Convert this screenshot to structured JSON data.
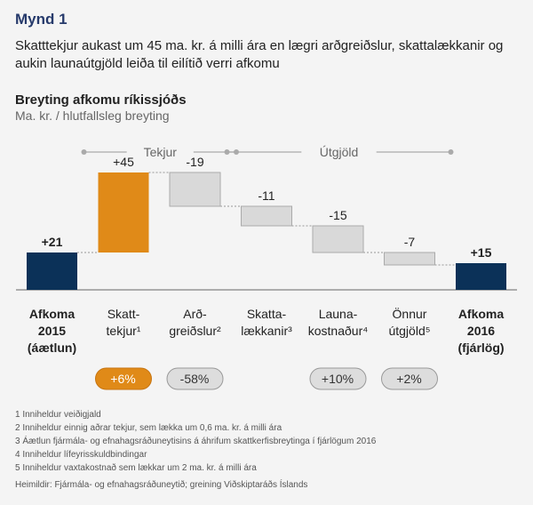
{
  "figure_label": "Mynd 1",
  "headline": "Skatttekjur aukast um 45 ma. kr. á milli ára en lægri arðgreiðslur, skattalækkanir og aukin launaútgjöld leiða til eilítið verri afkomu",
  "colors": {
    "total": "#0b3158",
    "increase": "#e08a18",
    "decrease": "#d9d9d9",
    "decrease_border": "#aaaaaa",
    "group_line": "#aaaaaa",
    "pill_increase": "#e08a18",
    "pill_neutral": "#dddddd"
  },
  "chart_data": {
    "type": "bar",
    "subtype": "waterfall",
    "title": "Breyting afkomu ríkissjóðs",
    "subtitle": "Ma. kr. / hlutfallsleg breyting",
    "groups": [
      {
        "label": "Tekjur",
        "from": 1,
        "to": 2
      },
      {
        "label": "Útgjöld",
        "from": 3,
        "to": 5
      }
    ],
    "bars": [
      {
        "category": [
          "Afkoma",
          "2015",
          "(áætlun)"
        ],
        "value": 21,
        "label": "+21",
        "kind": "total",
        "bold": true,
        "pct": ""
      },
      {
        "category": [
          "Skatt-",
          "tekjur¹"
        ],
        "value": 45,
        "label": "+45",
        "kind": "increase",
        "bold": false,
        "pct": "+6%"
      },
      {
        "category": [
          "Arð-",
          "greiðslur²"
        ],
        "value": -19,
        "label": "-19",
        "kind": "decrease",
        "bold": false,
        "pct": "-58%"
      },
      {
        "category": [
          "Skatta-",
          "lækkanir³"
        ],
        "value": -11,
        "label": "-11",
        "kind": "decrease",
        "bold": false,
        "pct": ""
      },
      {
        "category": [
          "Launa-",
          "kostnaður⁴"
        ],
        "value": -15,
        "label": "-15",
        "kind": "decrease",
        "bold": false,
        "pct": "+10%"
      },
      {
        "category": [
          "Önnur",
          "útgjöld⁵"
        ],
        "value": -7,
        "label": "-7",
        "kind": "decrease",
        "bold": false,
        "pct": "+2%"
      },
      {
        "category": [
          "Afkoma",
          "2016",
          "(fjárlög)"
        ],
        "value": 15,
        "label": "+15",
        "kind": "total",
        "bold": true,
        "pct": ""
      }
    ]
  },
  "footnotes": [
    "1 Inniheldur veiðigjald",
    "2 Inniheldur einnig aðrar tekjur, sem lækka um 0,6 ma. kr. á milli ára",
    "3 Áætlun fjármála- og efnahagsráðuneytisins á áhrifum skattkerfisbreytinga í fjárlögum 2016",
    "4 Inniheldur lífeyrisskuldbindingar",
    "5 Inniheldur vaxtakostnað sem lækkar um 2 ma. kr. á milli ára"
  ],
  "source": "Heimildir: Fjármála- og efnahagsráðuneytið; greining Viðskiptaráðs Íslands"
}
